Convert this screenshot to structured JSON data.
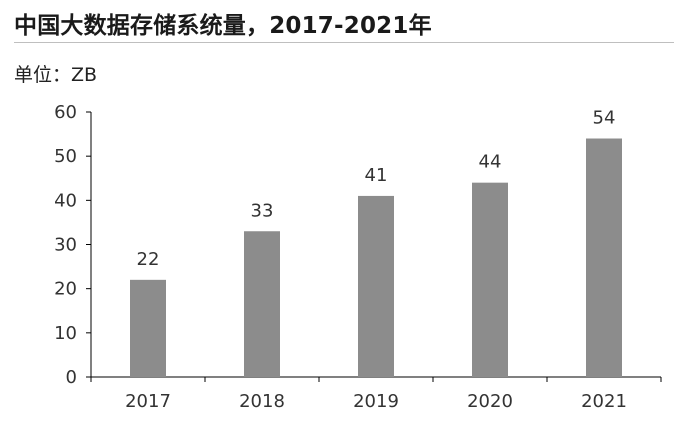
{
  "title": "中国大数据存储系统量，2017-2021年",
  "unit_label": "单位：ZB",
  "chart_data": {
    "type": "bar",
    "title": "中国大数据存储系统量，2017-2021年",
    "unit": "ZB",
    "categories": [
      "2017",
      "2018",
      "2019",
      "2020",
      "2021"
    ],
    "values": [
      22,
      33,
      41,
      44,
      54
    ],
    "data_labels": [
      "22",
      "33",
      "41",
      "44",
      "54"
    ],
    "ylim": [
      0,
      60
    ],
    "y_ticks": [
      "0",
      "10",
      "20",
      "30",
      "40",
      "50",
      "60"
    ],
    "grid": false,
    "bar_color": "#8c8c8c",
    "axis_color": "#000000"
  }
}
